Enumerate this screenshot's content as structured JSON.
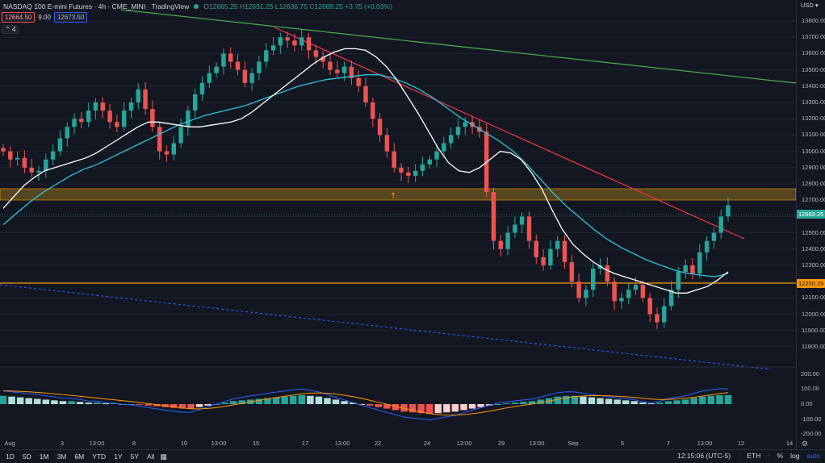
{
  "legend": {
    "symbol": "NASDAQ 100 E-mini Futures · 4h · CME_MINI · TradingView",
    "open": "12665.25",
    "high": "12691.25",
    "low": "12636.75",
    "close": "12669.25",
    "change": "+3.75 (+0.03%)"
  },
  "order": {
    "sell": "12664.50",
    "spread": "9.00",
    "buy": "12673.50"
  },
  "collapse_label": "4",
  "currency": "USD",
  "price_axis": [
    "13800.00",
    "13700.00",
    "13600.00",
    "13500.00",
    "13400.00",
    "13300.00",
    "13200.00",
    "13100.00",
    "13000.00",
    "12900.00",
    "12800.00",
    "12700.00",
    "12600.00",
    "12500.00",
    "12400.00",
    "12300.00",
    "12200.00",
    "12100.00",
    "12000.00",
    "11900.00",
    "11800.00"
  ],
  "price_tags": {
    "current": "12669.25",
    "level": "12250.25"
  },
  "osc_axis": [
    "200.00",
    "100.00",
    "0.00",
    "-100.00",
    "-200.00"
  ],
  "time_axis": [
    "Aug",
    "3",
    "13:00",
    "8",
    "10",
    "13:00",
    "15",
    "17",
    "13:00",
    "22",
    "24",
    "13:00",
    "29",
    "13:00",
    "Sep",
    "5",
    "7",
    "13:00",
    "12",
    "14"
  ],
  "bottom": {
    "timeframes": [
      "1D",
      "5D",
      "1M",
      "3M",
      "6M",
      "YTD",
      "1Y",
      "5Y",
      "All"
    ],
    "clock": "12:15:06 (UTC-5)",
    "session": "ETH",
    "percent": "%",
    "log": "log",
    "auto": "auto"
  },
  "colors": {
    "background": "#131722",
    "up": "#26a69a",
    "down": "#ef5350",
    "ema_fast": "#ffffff",
    "ema_slow": "#26c6da",
    "trend_red": "#f23645",
    "trend_green": "#4caf50",
    "level": "#ff9800"
  },
  "chart_data": {
    "type": "candlestick",
    "timeframe": "4h",
    "ylim": [
      11750,
      13830
    ],
    "closes": [
      13000,
      12950,
      12960,
      12900,
      12870,
      12880,
      12950,
      13000,
      13080,
      13150,
      13200,
      13180,
      13250,
      13300,
      13250,
      13180,
      13150,
      13250,
      13300,
      13380,
      13260,
      13150,
      13000,
      12980,
      13050,
      13150,
      13250,
      13350,
      13420,
      13480,
      13520,
      13600,
      13550,
      13500,
      13420,
      13480,
      13550,
      13620,
      13650,
      13700,
      13680,
      13650,
      13700,
      13620,
      13580,
      13550,
      13500,
      13480,
      13520,
      13450,
      13400,
      13300,
      13200,
      13100,
      13000,
      12900,
      12870,
      12850,
      12880,
      12920,
      12950,
      13000,
      13050,
      13100,
      13150,
      13180,
      13150,
      13120,
      12750,
      12450,
      12400,
      12500,
      12550,
      12600,
      12450,
      12350,
      12300,
      12400,
      12450,
      12320,
      12200,
      12100,
      12150,
      12280,
      12300,
      12200,
      12080,
      12100,
      12150,
      12180,
      12100,
      12000,
      11950,
      12050,
      12150,
      12260,
      12300,
      12250,
      12380,
      12450,
      12500,
      12600,
      12669
    ],
    "ema_fast": [
      12650,
      12720,
      12790,
      12840,
      12880,
      12900,
      12920,
      12940,
      12960,
      12990,
      13030,
      13070,
      13110,
      13150,
      13180,
      13180,
      13170,
      13160,
      13150,
      13150,
      13160,
      13170,
      13180,
      13200,
      13240,
      13290,
      13340,
      13390,
      13440,
      13490,
      13540,
      13580,
      13610,
      13630,
      13630,
      13620,
      13580,
      13520,
      13440,
      13340,
      13240,
      13130,
      13020,
      12930,
      12880,
      12870,
      12900,
      12950,
      13000,
      12990,
      12950,
      12870,
      12770,
      12640,
      12520,
      12430,
      12370,
      12320,
      12280,
      12250,
      12230,
      12210,
      12190,
      12170,
      12150,
      12130,
      12130,
      12150,
      12170,
      12210,
      12260
    ],
    "ema_slow": [
      12550,
      12620,
      12690,
      12750,
      12800,
      12850,
      12890,
      12920,
      12960,
      13000,
      13040,
      13080,
      13120,
      13160,
      13190,
      13220,
      13240,
      13260,
      13280,
      13310,
      13340,
      13370,
      13400,
      13420,
      13440,
      13450,
      13460,
      13470,
      13470,
      13450,
      13420,
      13380,
      13330,
      13270,
      13210,
      13160,
      13110,
      13060,
      13000,
      12920,
      12830,
      12740,
      12660,
      12590,
      12520,
      12460,
      12410,
      12370,
      12330,
      12300,
      12270,
      12250,
      12240,
      12230,
      12250
    ],
    "trendlines": [
      {
        "name": "red",
        "from": [
          13810,
          "Aug 17"
        ],
        "to": [
          12520,
          "Sep 9"
        ]
      },
      {
        "name": "green",
        "from": [
          13860,
          "Aug 4"
        ],
        "to": [
          13470,
          "Sep 12"
        ]
      }
    ],
    "levels": [
      12250.25,
      12780
    ],
    "oscillator": {
      "ylim": [
        -220,
        220
      ],
      "histogram": [
        55,
        50,
        45,
        40,
        35,
        30,
        25,
        20,
        20,
        15,
        10,
        10,
        5,
        5,
        0,
        0,
        -5,
        -10,
        -15,
        -20,
        -25,
        -30,
        -30,
        -20,
        -10,
        0,
        10,
        20,
        25,
        30,
        35,
        40,
        45,
        50,
        55,
        60,
        55,
        50,
        40,
        30,
        20,
        10,
        0,
        -10,
        -20,
        -30,
        -40,
        -50,
        -55,
        -60,
        -65,
        -60,
        -55,
        -50,
        -40,
        -30,
        -20,
        -10,
        0,
        5,
        10,
        15,
        20,
        30,
        40,
        50,
        55,
        55,
        50,
        45,
        40,
        35,
        30,
        25,
        20,
        10,
        5,
        10,
        20,
        25,
        30,
        40,
        50,
        55,
        60,
        60
      ]
    }
  }
}
